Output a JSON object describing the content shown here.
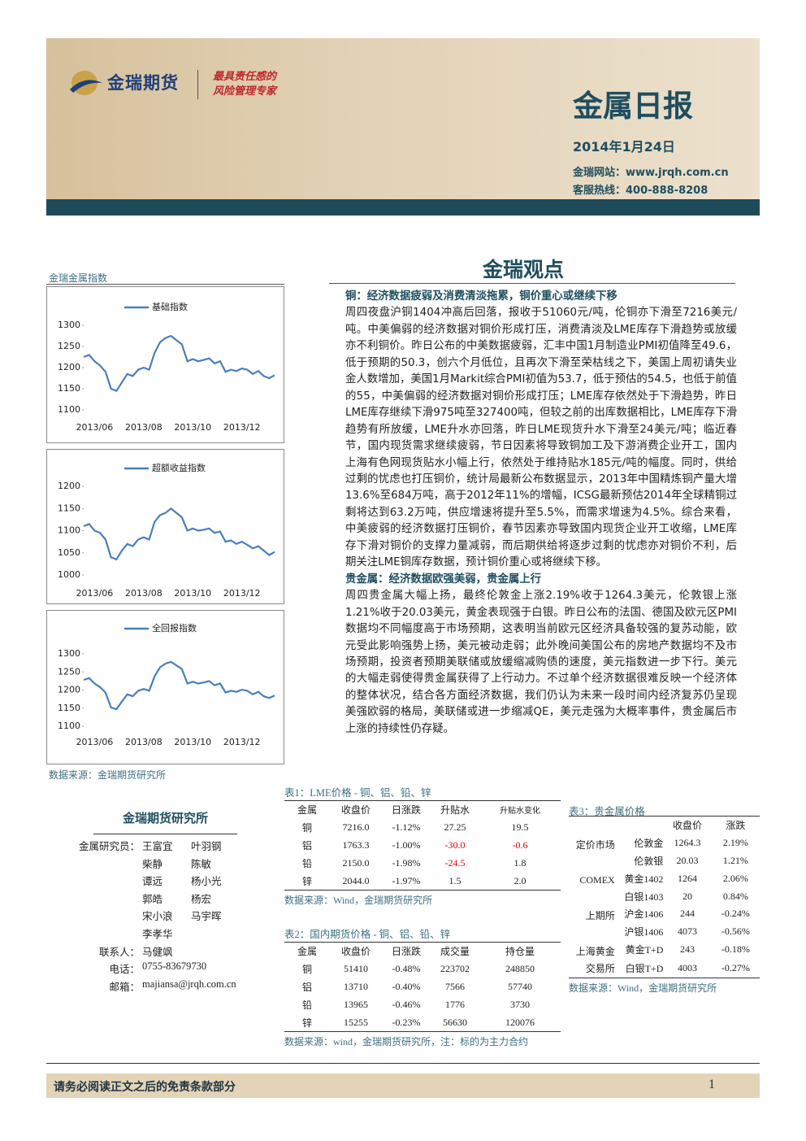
{
  "header": {
    "brand": "金瑞期货",
    "slogan": [
      "最具责任感的",
      "风险管理专家"
    ],
    "title": "金属日报",
    "date": "2014年1月24日",
    "website": "金瑞网站：www.jrqh.com.cn",
    "hotline": "客服热线：400-888-8208"
  },
  "index_panel": {
    "label": "金瑞金属指数",
    "source": "数据来源：金瑞期货研究所"
  },
  "chart_data": [
    {
      "type": "line",
      "categories": [
        null,
        null,
        "2013/06",
        null,
        null,
        null,
        null,
        null,
        null,
        null,
        null,
        "2013/08",
        null,
        null,
        null,
        null,
        null,
        null,
        null,
        null,
        "2013/10",
        null,
        null,
        null,
        null,
        null,
        null,
        null,
        null,
        "2013/12",
        null,
        null,
        null,
        null,
        null,
        null
      ],
      "series": [
        {
          "name": "基础指数",
          "color": "#4a7ebb",
          "values": [
            1225,
            1230,
            1215,
            1205,
            1190,
            1150,
            1145,
            1165,
            1185,
            1180,
            1195,
            1200,
            1195,
            1235,
            1260,
            1270,
            1275,
            1265,
            1255,
            1215,
            1220,
            1215,
            1218,
            1222,
            1210,
            1215,
            1190,
            1195,
            1192,
            1198,
            1195,
            1185,
            1192,
            1180,
            1175,
            1182
          ]
        }
      ],
      "ylim": [
        1100,
        1300
      ],
      "yticks": [
        1100,
        1150,
        1200,
        1250,
        1300
      ]
    },
    {
      "type": "line",
      "categories": [
        null,
        null,
        "2013/06",
        null,
        null,
        null,
        null,
        null,
        null,
        null,
        null,
        "2013/08",
        null,
        null,
        null,
        null,
        null,
        null,
        null,
        null,
        "2013/10",
        null,
        null,
        null,
        null,
        null,
        null,
        null,
        null,
        "2013/12",
        null,
        null,
        null,
        null,
        null,
        null
      ],
      "series": [
        {
          "name": "超额收益指数",
          "color": "#4a7ebb",
          "values": [
            1110,
            1115,
            1100,
            1095,
            1080,
            1040,
            1035,
            1055,
            1070,
            1065,
            1080,
            1085,
            1080,
            1120,
            1135,
            1140,
            1150,
            1140,
            1130,
            1100,
            1105,
            1100,
            1102,
            1105,
            1095,
            1098,
            1075,
            1078,
            1070,
            1075,
            1068,
            1060,
            1065,
            1055,
            1045,
            1052
          ]
        }
      ],
      "ylim": [
        1000,
        1200
      ],
      "yticks": [
        1000,
        1050,
        1100,
        1150,
        1200
      ]
    },
    {
      "type": "line",
      "categories": [
        null,
        null,
        "2013/06",
        null,
        null,
        null,
        null,
        null,
        null,
        null,
        null,
        "2013/08",
        null,
        null,
        null,
        null,
        null,
        null,
        null,
        null,
        "2013/10",
        null,
        null,
        null,
        null,
        null,
        null,
        null,
        null,
        "2013/12",
        null,
        null,
        null,
        null,
        null,
        null
      ],
      "series": [
        {
          "name": "全回报指数",
          "color": "#4a7ebb",
          "values": [
            1228,
            1233,
            1218,
            1208,
            1193,
            1152,
            1147,
            1168,
            1188,
            1183,
            1198,
            1203,
            1198,
            1238,
            1263,
            1273,
            1278,
            1268,
            1258,
            1218,
            1223,
            1218,
            1221,
            1225,
            1213,
            1218,
            1193,
            1198,
            1195,
            1201,
            1198,
            1188,
            1195,
            1183,
            1178,
            1185
          ]
        }
      ],
      "ylim": [
        1100,
        1300
      ],
      "yticks": [
        1100,
        1150,
        1200,
        1250,
        1300
      ]
    }
  ],
  "article": {
    "title": "金瑞观点",
    "sections": [
      {
        "heading": "铜：经济数据疲弱及消费清淡拖累，铜价重心或继续下移",
        "text": "周四夜盘沪铜1404冲高后回落，报收于51060元/吨，伦铜亦下滑至7216美元/吨。中美偏弱的经济数据对铜价形成打压，消费清淡及LME库存下滑趋势或放缓亦不利铜价。昨日公布的中美数据疲弱，汇丰中国1月制造业PMI初值降至49.6，低于预期的50.3，创六个月低位，且再次下滑至荣枯线之下，美国上周初请失业金人数增加，美国1月Markit综合PMI初值为53.7，低于预估的54.5，也低于前值的55，中美偏弱的经济数据对铜价形成打压；LME库存依然处于下滑趋势，昨日LME库存继续下滑975吨至327400吨，但较之前的出库数据相比，LME库存下滑趋势有所放缓，LME升水亦回落，昨日LME现货升水下滑至24美元/吨；临近春节，国内现货需求继续疲弱，节日因素将导致铜加工及下游消费企业开工，国内上海有色网现货贴水小幅上行，依然处于维持贴水185元/吨的幅度。同时，供给过剩的忧虑也打压铜价，统计局最新公布数据显示，2013年中国精炼铜产量大增13.6%至684万吨，高于2012年11%的增幅，ICSG最新预估2014年全球精铜过剩将达到63.2万吨，供应增速将提升至5.5%，而需求增速为4.5%。综合来看，中美疲弱的经济数据打压铜价，春节因素亦导致国内现货企业开工收缩，LME库存下滑对铜价的支撑力量减弱，而后期供给将逐步过剩的忧虑亦对铜价不利，后期关注LME铜库存数据，预计铜价重心或将继续下移。"
      },
      {
        "heading": "贵金属：经济数据欧强美弱，贵金属上行",
        "text": "周四贵金属大幅上扬，最终伦敦金上涨2.19%收于1264.3美元，伦敦银上涨1.21%收于20.03美元，黄金表现强于白银。昨日公布的法国、德国及欧元区PMI数据均不同幅度高于市场预期，这表明当前欧元区经济具备较强的复苏动能，欧元受此影响强势上扬，美元被动走弱；此外晚间美国公布的房地产数据均不及市场预期，投资者预期美联储或放缓缩减购债的速度，美元指数进一步下行。美元的大幅走弱使得贵金属获得了上行动力。不过单个经济数据很难反映一个经济体的整体状况，结合各方面经济数据，我们仍认为未来一段时间内经济复苏仍呈现美强欧弱的格局，美联储或进一步缩减QE，美元走强为大概率事件，贵金属后市上涨的持续性仍存疑。"
      }
    ]
  },
  "research": {
    "title": "金瑞期货研究所",
    "rows": [
      {
        "label": "金属研究员：",
        "names": [
          "王富宜",
          "叶羽钢"
        ]
      },
      {
        "names": [
          "柴静",
          "陈敏"
        ]
      },
      {
        "names": [
          "谭远",
          "杨小光"
        ]
      },
      {
        "names": [
          "郭皓",
          "杨宏"
        ]
      },
      {
        "names": [
          "宋小浪",
          "马宇晖"
        ]
      },
      {
        "names": [
          "李孝华"
        ]
      },
      {
        "label": "联系人：",
        "names": [
          "马健飒"
        ]
      },
      {
        "label": "电话：",
        "names": [
          "0755-83679730"
        ]
      },
      {
        "label": "邮箱：",
        "names": [
          "majiansa@jrqh.com.cn"
        ]
      }
    ]
  },
  "table1": {
    "title": "表1：LME价格 - 铜、铝、铅、锌",
    "header": [
      "金属",
      "收盘价",
      "日涨跌",
      "升贴水",
      "升贴水变化"
    ],
    "rows": [
      [
        "铜",
        "7216.0",
        "-1.12%",
        "27.25",
        "19.5"
      ],
      [
        "铝",
        "1763.3",
        "-1.00%",
        "-30.0",
        "-0.6"
      ],
      [
        "铅",
        "2150.0",
        "-1.98%",
        "-24.5",
        "1.8"
      ],
      [
        "锌",
        "2044.0",
        "-1.97%",
        "1.5",
        "2.0"
      ]
    ],
    "negative_color": "#e00000",
    "source": "数据来源：Wind，金瑞期货研究所"
  },
  "table2": {
    "title": "表2：国内期货价格 - 铜、铝、铅、锌",
    "header": [
      "金属",
      "收盘价",
      "日涨跌",
      "成交量",
      "持仓量"
    ],
    "rows": [
      [
        "铜",
        "51410",
        "-0.48%",
        "223702",
        "248850"
      ],
      [
        "铝",
        "13710",
        "-0.40%",
        "7566",
        "57740"
      ],
      [
        "铅",
        "13965",
        "-0.46%",
        "1776",
        "3730"
      ],
      [
        "锌",
        "15255",
        "-0.23%",
        "56630",
        "120076"
      ]
    ],
    "source": "数据来源：wind，金瑞期货研究所，注：标的为主力合约"
  },
  "table3": {
    "title": "表3：贵金属价格",
    "header": [
      "收盘价",
      "涨跌"
    ],
    "groups": [
      {
        "market": "定价市场",
        "items": [
          [
            "伦敦金",
            "1264.3",
            "2.19%"
          ],
          [
            "伦敦银",
            "20.03",
            "1.21%"
          ]
        ]
      },
      {
        "market": "COMEX",
        "items": [
          [
            "黄金1402",
            "1264",
            "2.06%"
          ],
          [
            "白银1403",
            "20",
            "0.84%"
          ]
        ]
      },
      {
        "market": "上期所",
        "items": [
          [
            "沪金1406",
            "244",
            "-0.24%"
          ],
          [
            "沪银1406",
            "4073",
            "-0.56%"
          ]
        ]
      },
      {
        "market": "上海黄金交易所",
        "items": [
          [
            "黄金T+D",
            "243",
            "-0.18%"
          ],
          [
            "白银T+D",
            "4003",
            "-0.27%"
          ]
        ]
      }
    ],
    "source": "数据来源：Wind，金瑞期货研究所"
  },
  "footer": {
    "disclaimer": "请务必阅读正文之后的免责条款部分",
    "page": "1"
  }
}
